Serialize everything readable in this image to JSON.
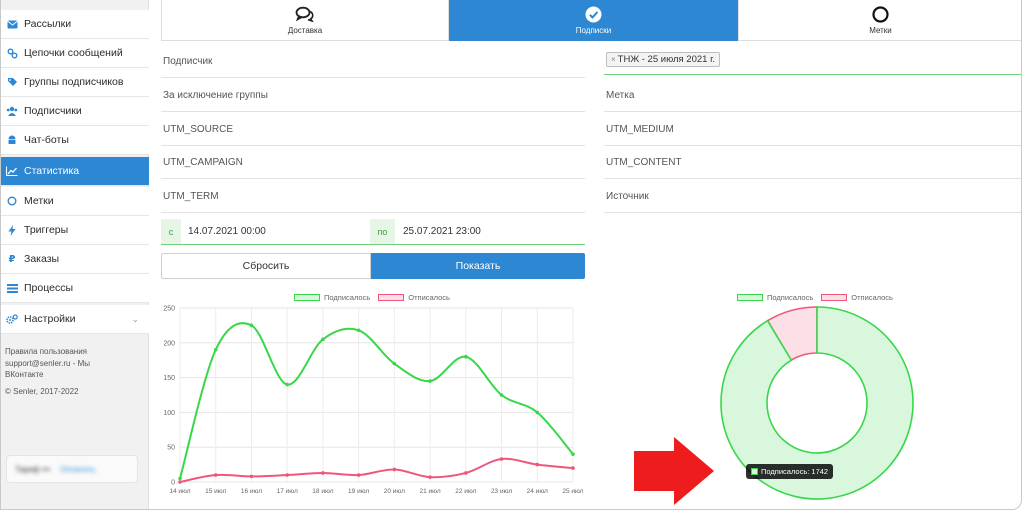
{
  "sidebar": {
    "items": [
      {
        "label": "Рассылки",
        "icon": "envelope-icon"
      },
      {
        "label": "Цепочки сообщений",
        "icon": "link-icon"
      },
      {
        "label": "Группы подписчиков",
        "icon": "tags-icon"
      },
      {
        "label": "Подписчики",
        "icon": "users-icon"
      },
      {
        "label": "Чат-боты",
        "icon": "android-icon"
      },
      {
        "label": "Статистика",
        "icon": "chart-line-icon",
        "active": true
      },
      {
        "label": "Метки",
        "icon": "circle-icon"
      },
      {
        "label": "Триггеры",
        "icon": "bolt-icon"
      },
      {
        "label": "Заказы",
        "icon": "ruble-icon"
      },
      {
        "label": "Процессы",
        "icon": "list-icon"
      },
      {
        "label": "Настройки",
        "icon": "gears-icon",
        "chevron": "⌄"
      }
    ],
    "footer_rules": "Правила пользования",
    "footer_support": "support@senler.ru - Мы",
    "footer_vk": "ВКонтакте",
    "footer_copy": "© Senler, 2017-2022",
    "blur_left": "Тариф ••• ",
    "blur_right": "Оплатить"
  },
  "tabs": [
    {
      "label": "Доставка",
      "icon": "comments-icon"
    },
    {
      "label": "Подписки",
      "icon": "check-circle-icon",
      "active": true
    },
    {
      "label": "Метки",
      "icon": "circle-outline-icon"
    }
  ],
  "filters": {
    "subscriber": "Подписчик",
    "selected_group_tag": "ТНЖ - 25 июля 2021 г.",
    "tag_remove": "×",
    "exclude_group": "За исключение группы",
    "tag": "Метка",
    "utm_source": "UTM_SOURCE",
    "utm_medium": "UTM_MEDIUM",
    "utm_campaign": "UTM_CAMPAIGN",
    "utm_content": "UTM_CONTENT",
    "utm_term": "UTM_TERM",
    "source": "Источник"
  },
  "dates": {
    "from_prefix": "с",
    "from_value": "14.07.2021 00:00",
    "to_prefix": "по",
    "to_value": "25.07.2021 23:00"
  },
  "buttons": {
    "reset": "Сбросить",
    "show": "Показать"
  },
  "colors": {
    "accent": "#2d87d3",
    "subscribed": "#38d74a",
    "unsubscribed": "#f0567c",
    "arrow": "#ee1c1c"
  },
  "chart_data": [
    {
      "type": "line",
      "x": [
        "14 июл",
        "15 июл",
        "16 июл",
        "17 июл",
        "18 июл",
        "19 июл",
        "20 июл",
        "21 июл",
        "22 июл",
        "23 июл",
        "24 июл",
        "25 июл"
      ],
      "series": [
        {
          "name": "Подписалось",
          "values": [
            5,
            190,
            225,
            140,
            205,
            218,
            170,
            145,
            180,
            125,
            100,
            40
          ]
        },
        {
          "name": "Отписалось",
          "values": [
            0,
            10,
            8,
            10,
            13,
            10,
            18,
            7,
            13,
            33,
            25,
            20
          ]
        }
      ],
      "ylim": [
        0,
        250
      ],
      "yticks": [
        0,
        50,
        100,
        150,
        200,
        250
      ],
      "grid": true,
      "legend": "top-center"
    },
    {
      "type": "pie",
      "variant": "doughnut",
      "labels": [
        "Подписалось",
        "Отписалось"
      ],
      "values": [
        1742,
        164
      ],
      "legend": "top-center",
      "tooltip": "Подписалось: 1742"
    }
  ]
}
